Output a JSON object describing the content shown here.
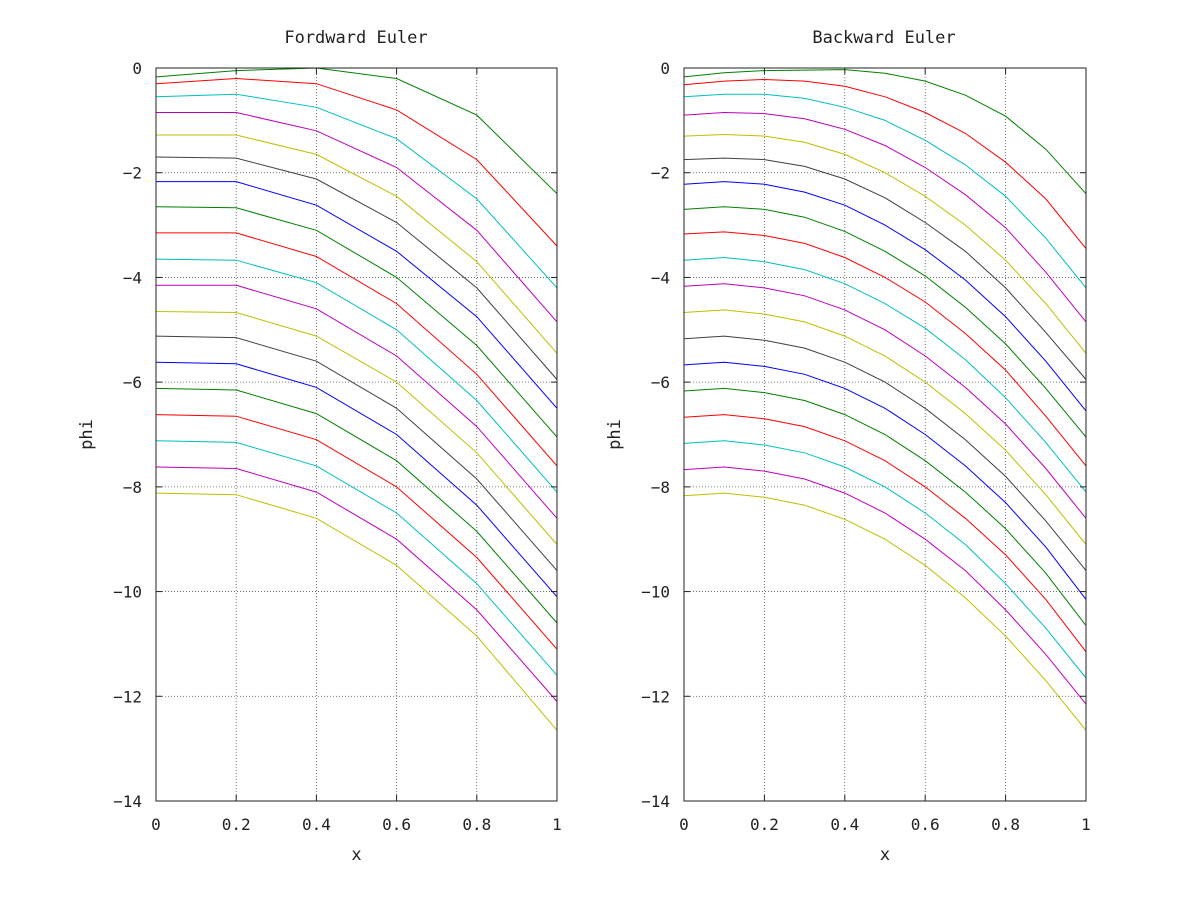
{
  "chart_data": [
    {
      "type": "line",
      "title": "Fordward Euler",
      "xlabel": "x",
      "ylabel": "phi",
      "xlim": [
        0,
        1
      ],
      "ylim": [
        -14,
        0
      ],
      "xticks": [
        0,
        0.2,
        0.4,
        0.6,
        0.8,
        1
      ],
      "xtick_labels": [
        "0",
        "0.2",
        "0.4",
        "0.6",
        "0.8",
        "1"
      ],
      "yticks": [
        0,
        -2,
        -4,
        -6,
        -8,
        -10,
        -12,
        -14
      ],
      "ytick_labels": [
        "0",
        "−2",
        "−4",
        "−6",
        "−8",
        "−10",
        "−12",
        "−14"
      ],
      "grid": true,
      "x": [
        0,
        0.2,
        0.4,
        0.6,
        0.8,
        1.0
      ],
      "series": [
        {
          "color": "#008000",
          "values": [
            -0.17,
            -0.05,
            0.0,
            -0.2,
            -0.9,
            -2.4
          ]
        },
        {
          "color": "#ff0000",
          "values": [
            -0.3,
            -0.2,
            -0.3,
            -0.8,
            -1.75,
            -3.4
          ]
        },
        {
          "color": "#00bfbf",
          "values": [
            -0.55,
            -0.5,
            -0.75,
            -1.35,
            -2.5,
            -4.2
          ]
        },
        {
          "color": "#bf00bf",
          "values": [
            -0.85,
            -0.85,
            -1.2,
            -1.9,
            -3.1,
            -4.85
          ]
        },
        {
          "color": "#bfbf00",
          "values": [
            -1.28,
            -1.28,
            -1.65,
            -2.45,
            -3.7,
            -5.45
          ]
        },
        {
          "color": "#404040",
          "values": [
            -1.7,
            -1.72,
            -2.12,
            -2.95,
            -4.2,
            -5.95
          ]
        },
        {
          "color": "#0000ff",
          "values": [
            -2.17,
            -2.17,
            -2.62,
            -3.5,
            -4.75,
            -6.5
          ]
        },
        {
          "color": "#008000",
          "values": [
            -2.65,
            -2.67,
            -3.1,
            -4.0,
            -5.3,
            -7.05
          ]
        },
        {
          "color": "#ff0000",
          "values": [
            -3.15,
            -3.15,
            -3.6,
            -4.5,
            -5.85,
            -7.6
          ]
        },
        {
          "color": "#00bfbf",
          "values": [
            -3.65,
            -3.67,
            -4.1,
            -5.0,
            -6.35,
            -8.1
          ]
        },
        {
          "color": "#bf00bf",
          "values": [
            -4.15,
            -4.15,
            -4.6,
            -5.5,
            -6.85,
            -8.6
          ]
        },
        {
          "color": "#bfbf00",
          "values": [
            -4.65,
            -4.67,
            -5.12,
            -6.0,
            -7.35,
            -9.1
          ]
        },
        {
          "color": "#404040",
          "values": [
            -5.12,
            -5.15,
            -5.6,
            -6.5,
            -7.85,
            -9.6
          ]
        },
        {
          "color": "#0000ff",
          "values": [
            -5.62,
            -5.65,
            -6.1,
            -7.0,
            -8.35,
            -10.1
          ]
        },
        {
          "color": "#008000",
          "values": [
            -6.12,
            -6.15,
            -6.6,
            -7.5,
            -8.85,
            -10.6
          ]
        },
        {
          "color": "#ff0000",
          "values": [
            -6.62,
            -6.65,
            -7.1,
            -8.0,
            -9.35,
            -11.1
          ]
        },
        {
          "color": "#00bfbf",
          "values": [
            -7.12,
            -7.15,
            -7.6,
            -8.5,
            -9.85,
            -11.6
          ]
        },
        {
          "color": "#bf00bf",
          "values": [
            -7.62,
            -7.65,
            -8.1,
            -9.0,
            -10.35,
            -12.1
          ]
        },
        {
          "color": "#bfbf00",
          "values": [
            -8.12,
            -8.15,
            -8.6,
            -9.5,
            -10.85,
            -12.65
          ]
        }
      ]
    },
    {
      "type": "line",
      "title": "Backward Euler",
      "xlabel": "x",
      "ylabel": "phi",
      "xlim": [
        0,
        1
      ],
      "ylim": [
        -14,
        0
      ],
      "xticks": [
        0,
        0.2,
        0.4,
        0.6,
        0.8,
        1
      ],
      "xtick_labels": [
        "0",
        "0.2",
        "0.4",
        "0.6",
        "0.8",
        "1"
      ],
      "yticks": [
        0,
        -2,
        -4,
        -6,
        -8,
        -10,
        -12,
        -14
      ],
      "ytick_labels": [
        "0",
        "−2",
        "−4",
        "−6",
        "−8",
        "−10",
        "−12",
        "−14"
      ],
      "grid": true,
      "x": [
        0,
        0.1,
        0.2,
        0.3,
        0.4,
        0.5,
        0.6,
        0.7,
        0.8,
        0.9,
        1.0
      ],
      "series": [
        {
          "color": "#008000",
          "values": [
            -0.17,
            -0.09,
            -0.05,
            -0.04,
            -0.03,
            -0.1,
            -0.25,
            -0.52,
            -0.92,
            -1.55,
            -2.4
          ]
        },
        {
          "color": "#ff0000",
          "values": [
            -0.32,
            -0.25,
            -0.22,
            -0.25,
            -0.35,
            -0.55,
            -0.85,
            -1.25,
            -1.8,
            -2.5,
            -3.45
          ]
        },
        {
          "color": "#00bfbf",
          "values": [
            -0.55,
            -0.5,
            -0.5,
            -0.58,
            -0.75,
            -1.0,
            -1.38,
            -1.85,
            -2.45,
            -3.25,
            -4.2
          ]
        },
        {
          "color": "#bf00bf",
          "values": [
            -0.9,
            -0.85,
            -0.87,
            -0.97,
            -1.17,
            -1.48,
            -1.9,
            -2.42,
            -3.05,
            -3.9,
            -4.85
          ]
        },
        {
          "color": "#bfbf00",
          "values": [
            -1.3,
            -1.27,
            -1.3,
            -1.42,
            -1.65,
            -2.0,
            -2.45,
            -3.0,
            -3.67,
            -4.5,
            -5.45
          ]
        },
        {
          "color": "#404040",
          "values": [
            -1.75,
            -1.72,
            -1.75,
            -1.88,
            -2.12,
            -2.48,
            -2.95,
            -3.5,
            -4.2,
            -5.05,
            -5.95
          ]
        },
        {
          "color": "#0000ff",
          "values": [
            -2.22,
            -2.17,
            -2.22,
            -2.37,
            -2.62,
            -3.0,
            -3.47,
            -4.05,
            -4.75,
            -5.6,
            -6.55
          ]
        },
        {
          "color": "#008000",
          "values": [
            -2.7,
            -2.65,
            -2.7,
            -2.85,
            -3.12,
            -3.5,
            -3.97,
            -4.57,
            -5.27,
            -6.12,
            -7.05
          ]
        },
        {
          "color": "#ff0000",
          "values": [
            -3.17,
            -3.13,
            -3.2,
            -3.35,
            -3.62,
            -4.0,
            -4.47,
            -5.07,
            -5.77,
            -6.65,
            -7.6
          ]
        },
        {
          "color": "#00bfbf",
          "values": [
            -3.67,
            -3.62,
            -3.7,
            -3.85,
            -4.12,
            -4.5,
            -4.97,
            -5.57,
            -6.3,
            -7.15,
            -8.1
          ]
        },
        {
          "color": "#bf00bf",
          "values": [
            -4.17,
            -4.12,
            -4.2,
            -4.35,
            -4.62,
            -5.0,
            -5.5,
            -6.1,
            -6.8,
            -7.65,
            -8.6
          ]
        },
        {
          "color": "#bfbf00",
          "values": [
            -4.67,
            -4.62,
            -4.7,
            -4.85,
            -5.12,
            -5.5,
            -6.0,
            -6.6,
            -7.3,
            -8.15,
            -9.1
          ]
        },
        {
          "color": "#404040",
          "values": [
            -5.17,
            -5.12,
            -5.2,
            -5.35,
            -5.62,
            -6.0,
            -6.5,
            -7.1,
            -7.8,
            -8.65,
            -9.6
          ]
        },
        {
          "color": "#0000ff",
          "values": [
            -5.67,
            -5.62,
            -5.7,
            -5.85,
            -6.12,
            -6.5,
            -7.0,
            -7.6,
            -8.3,
            -9.15,
            -10.15
          ]
        },
        {
          "color": "#008000",
          "values": [
            -6.17,
            -6.12,
            -6.2,
            -6.35,
            -6.62,
            -7.0,
            -7.5,
            -8.1,
            -8.8,
            -9.65,
            -10.65
          ]
        },
        {
          "color": "#ff0000",
          "values": [
            -6.67,
            -6.62,
            -6.7,
            -6.85,
            -7.12,
            -7.5,
            -8.0,
            -8.6,
            -9.3,
            -10.15,
            -11.15
          ]
        },
        {
          "color": "#00bfbf",
          "values": [
            -7.17,
            -7.12,
            -7.2,
            -7.35,
            -7.62,
            -8.0,
            -8.5,
            -9.1,
            -9.85,
            -10.7,
            -11.65
          ]
        },
        {
          "color": "#bf00bf",
          "values": [
            -7.67,
            -7.62,
            -7.7,
            -7.85,
            -8.12,
            -8.5,
            -9.0,
            -9.6,
            -10.35,
            -11.2,
            -12.15
          ]
        },
        {
          "color": "#bfbf00",
          "values": [
            -8.17,
            -8.12,
            -8.2,
            -8.35,
            -8.62,
            -9.0,
            -9.5,
            -10.12,
            -10.85,
            -11.7,
            -12.65
          ]
        }
      ]
    }
  ]
}
